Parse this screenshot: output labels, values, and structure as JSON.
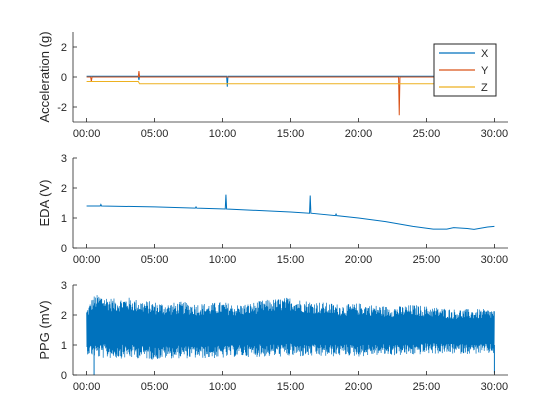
{
  "figure_colors": {
    "axis": "#262626",
    "series_x": "#0072BD",
    "series_y": "#D95319",
    "series_z": "#EDB120",
    "eda": "#0072BD",
    "ppg": "#0072BD"
  },
  "chart_data": [
    {
      "type": "line",
      "title": "",
      "xlabel": "",
      "ylabel": "Acceleration (g)",
      "xlim": [
        -1,
        31
      ],
      "ylim": [
        -3,
        3
      ],
      "xticks": [
        0,
        5,
        10,
        15,
        20,
        25,
        30
      ],
      "xtick_labels": [
        "00:00",
        "05:00",
        "10:00",
        "15:00",
        "20:00",
        "25:00",
        "30:00"
      ],
      "yticks": [
        -2,
        0,
        2
      ],
      "ytick_labels": [
        "-2",
        "0",
        "2"
      ],
      "grid": false,
      "legend": "top-right",
      "series": [
        {
          "name": "X",
          "color": "#0072BD",
          "x": [
            0,
            3.8,
            3.85,
            3.9,
            10.3,
            10.35,
            10.4,
            23.0,
            30
          ],
          "y": [
            0.05,
            0.05,
            -0.2,
            0.05,
            0.05,
            -0.65,
            0.05,
            0.05,
            0.05
          ]
        },
        {
          "name": "Y",
          "color": "#D95319",
          "x": [
            0,
            0.3,
            0.35,
            0.4,
            3.8,
            3.85,
            3.9,
            10.3,
            22.95,
            23.0,
            23.05,
            30
          ],
          "y": [
            0.0,
            0.0,
            -0.3,
            0.0,
            0.0,
            0.4,
            0.0,
            0.0,
            0.0,
            -2.55,
            0.0,
            0.0
          ]
        },
        {
          "name": "Z",
          "color": "#EDB120",
          "x": [
            0,
            3.8,
            3.9,
            10.3,
            23.0,
            30
          ],
          "y": [
            -0.3,
            -0.3,
            -0.45,
            -0.45,
            -0.45,
            -0.45
          ]
        }
      ]
    },
    {
      "type": "line",
      "title": "",
      "xlabel": "",
      "ylabel": "EDA (V)",
      "xlim": [
        -1,
        31
      ],
      "ylim": [
        0,
        3
      ],
      "xticks": [
        0,
        5,
        10,
        15,
        20,
        25,
        30
      ],
      "xtick_labels": [
        "00:00",
        "05:00",
        "10:00",
        "15:00",
        "20:00",
        "25:00",
        "30:00"
      ],
      "yticks": [
        0,
        1,
        2,
        3
      ],
      "ytick_labels": [
        "0",
        "1",
        "2",
        "3"
      ],
      "grid": false,
      "series": [
        {
          "name": "",
          "color": "#0072BD",
          "x": [
            0,
            1.0,
            1.05,
            1.1,
            5,
            8,
            8.05,
            8.1,
            10.2,
            10.25,
            10.3,
            15,
            16.4,
            16.45,
            16.5,
            18.3,
            18.35,
            18.4,
            20,
            22,
            24,
            25.5,
            26.5,
            27,
            28,
            28.5,
            29.5,
            30
          ],
          "y": [
            1.4,
            1.4,
            1.45,
            1.4,
            1.37,
            1.33,
            1.37,
            1.33,
            1.3,
            1.78,
            1.3,
            1.2,
            1.16,
            1.75,
            1.16,
            1.08,
            1.13,
            1.08,
            1.0,
            0.88,
            0.72,
            0.63,
            0.63,
            0.68,
            0.65,
            0.62,
            0.7,
            0.72
          ]
        }
      ]
    },
    {
      "type": "line",
      "title": "",
      "xlabel": "",
      "ylabel": "PPG (mV)",
      "xlim": [
        -1,
        31
      ],
      "ylim": [
        0,
        3
      ],
      "xticks": [
        0,
        5,
        10,
        15,
        20,
        25,
        30
      ],
      "xtick_labels": [
        "00:00",
        "05:00",
        "10:00",
        "15:00",
        "20:00",
        "25:00",
        "30:00"
      ],
      "yticks": [
        0,
        1,
        2,
        3
      ],
      "ytick_labels": [
        "0",
        "1",
        "2",
        "3"
      ],
      "grid": false,
      "series": [
        {
          "name": "",
          "color": "#0072BD",
          "x": [
            0,
            0.5,
            1,
            2,
            3,
            4,
            5,
            6,
            7,
            8,
            9,
            10,
            11,
            12,
            13,
            14,
            15,
            16,
            17,
            18,
            19,
            20,
            21,
            22,
            23,
            24,
            25,
            26,
            27,
            28,
            29,
            30
          ],
          "y_max": [
            2.2,
            2.65,
            2.7,
            2.55,
            2.6,
            2.5,
            2.45,
            2.4,
            2.45,
            2.4,
            2.4,
            2.45,
            2.35,
            2.4,
            2.5,
            2.55,
            2.6,
            2.5,
            2.45,
            2.4,
            2.35,
            2.4,
            2.35,
            2.3,
            2.3,
            2.35,
            2.3,
            2.25,
            2.2,
            2.2,
            2.2,
            2.2
          ],
          "y_min": [
            0.7,
            0.6,
            0.55,
            0.55,
            0.55,
            0.55,
            0.5,
            0.55,
            0.55,
            0.55,
            0.55,
            0.55,
            0.6,
            0.6,
            0.6,
            0.6,
            0.6,
            0.6,
            0.6,
            0.6,
            0.65,
            0.6,
            0.65,
            0.65,
            0.65,
            0.65,
            0.7,
            0.7,
            0.7,
            0.7,
            0.7,
            0.7
          ],
          "spikes": [
            {
              "x": 0.55,
              "y": 0.0
            },
            {
              "x": 30.0,
              "y": 0.05
            }
          ]
        }
      ]
    }
  ]
}
